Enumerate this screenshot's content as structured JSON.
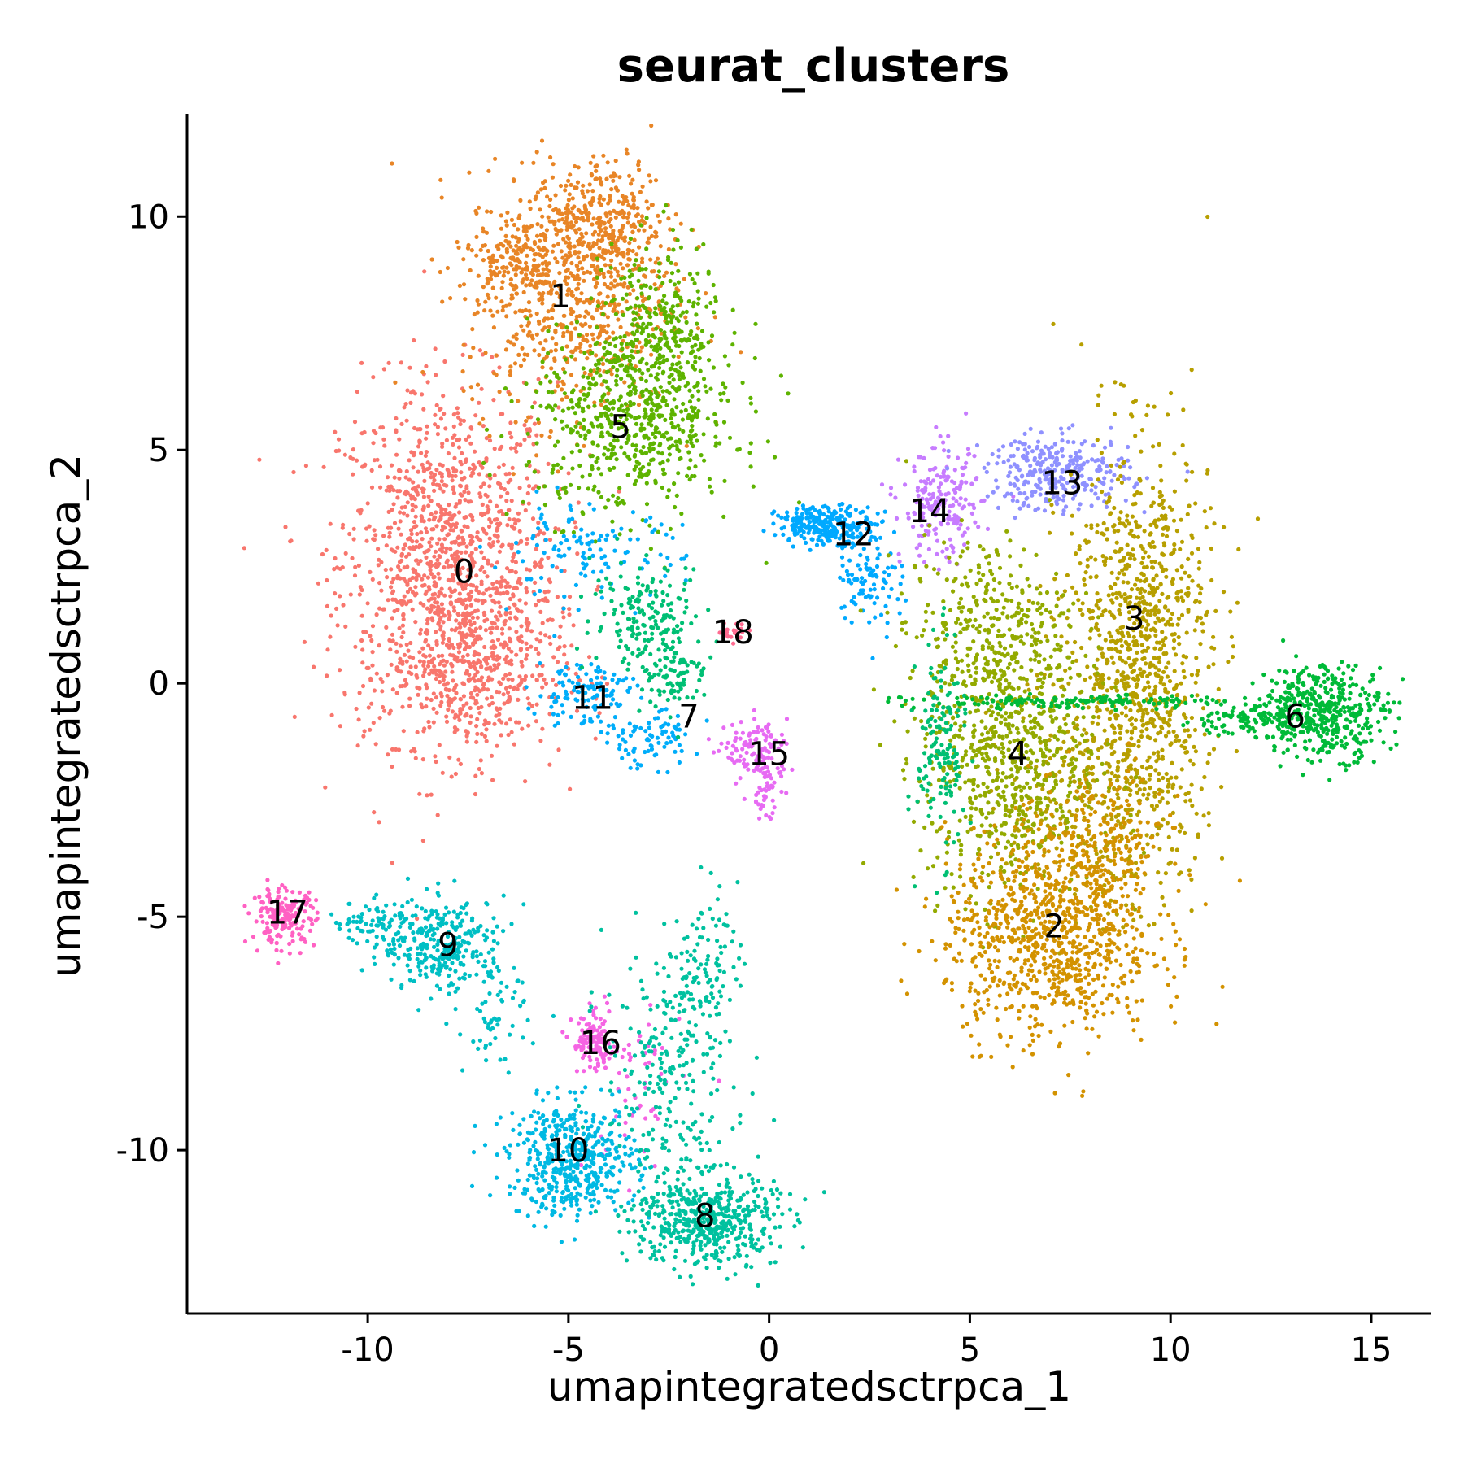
{
  "chart_data": {
    "type": "scatter",
    "title": "seurat_clusters",
    "xlabel": "umapintegratedsctrpca_1",
    "ylabel": "umapintegratedsctrpca_2",
    "xlim": [
      -14.5,
      16.5
    ],
    "ylim": [
      -13.5,
      12.2
    ],
    "xticks": [
      -10,
      -5,
      0,
      5,
      10,
      15
    ],
    "xtick_labels": [
      "-10",
      "-5",
      "0",
      "5",
      "10",
      "15"
    ],
    "yticks": [
      -10,
      -5,
      0,
      5,
      10
    ],
    "ytick_labels": [
      "-10",
      "-5",
      "0",
      "5",
      "10"
    ],
    "grid": false,
    "legend": "none",
    "clusters": [
      {
        "label": "0",
        "color": "#F8766D",
        "label_x": -7.6,
        "label_y": 2.4
      },
      {
        "label": "1",
        "color": "#E88526",
        "label_x": -5.2,
        "label_y": 8.3
      },
      {
        "label": "2",
        "color": "#D39200",
        "label_x": 7.1,
        "label_y": -5.2
      },
      {
        "label": "3",
        "color": "#B79F00",
        "label_x": 9.1,
        "label_y": 1.4
      },
      {
        "label": "4",
        "color": "#93AA00",
        "label_x": 6.2,
        "label_y": -1.5
      },
      {
        "label": "5",
        "color": "#5EB300",
        "label_x": -3.7,
        "label_y": 5.5
      },
      {
        "label": "6",
        "color": "#00BA38",
        "label_x": 13.1,
        "label_y": -0.7
      },
      {
        "label": "7",
        "color": "#00BF74",
        "label_x": -2.0,
        "label_y": -0.7
      },
      {
        "label": "8",
        "color": "#00C19F",
        "label_x": -1.6,
        "label_y": -11.4
      },
      {
        "label": "9",
        "color": "#00BFC4",
        "label_x": -8.0,
        "label_y": -5.6
      },
      {
        "label": "10",
        "color": "#00B9E3",
        "label_x": -5.0,
        "label_y": -10.0
      },
      {
        "label": "11",
        "color": "#00ADFA",
        "label_x": -4.4,
        "label_y": -0.3
      },
      {
        "label": "12",
        "color": "#00A9FF",
        "label_x": 2.1,
        "label_y": 3.2
      },
      {
        "label": "13",
        "color": "#8F91FF",
        "label_x": 7.3,
        "label_y": 4.3
      },
      {
        "label": "14",
        "color": "#C77CFF",
        "label_x": 4.0,
        "label_y": 3.7
      },
      {
        "label": "15",
        "color": "#E76BF3",
        "label_x": 0.0,
        "label_y": -1.5
      },
      {
        "label": "16",
        "color": "#F564E3",
        "label_x": -4.2,
        "label_y": -7.7
      },
      {
        "label": "17",
        "color": "#FF61C3",
        "label_x": -12.0,
        "label_y": -4.9
      },
      {
        "label": "18",
        "color": "#FF6C91",
        "label_x": -0.9,
        "label_y": 1.1
      }
    ]
  }
}
